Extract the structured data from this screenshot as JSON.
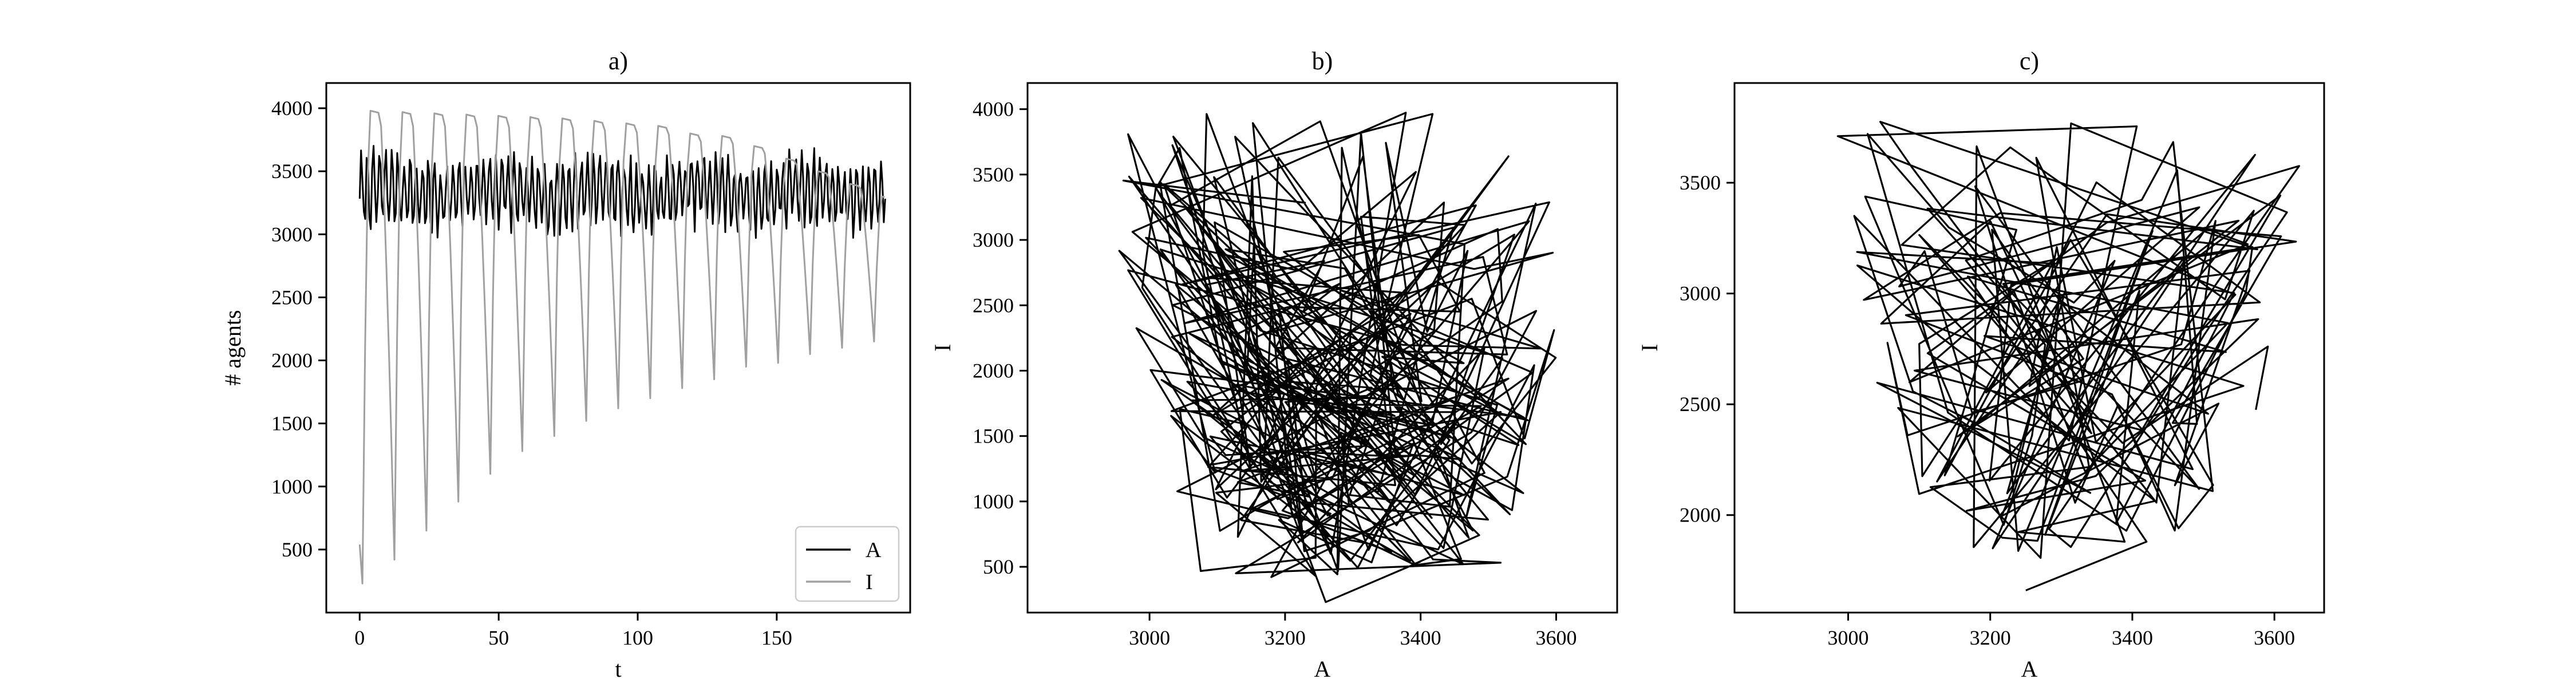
{
  "chart_data": [
    {
      "type": "line",
      "title": "a)",
      "xlabel": "t",
      "ylabel": "# agents",
      "xlim": [
        -12,
        198
      ],
      "ylim": [
        0,
        4200
      ],
      "xticks": [
        0,
        50,
        100,
        150
      ],
      "yticks": [
        500,
        1000,
        1500,
        2000,
        2500,
        3000,
        3500,
        4000
      ],
      "legend": {
        "position": "lower-right",
        "entries": [
          "A",
          "I"
        ]
      },
      "series": [
        {
          "name": "A",
          "color": "#000000",
          "kind": "oscillation",
          "t_range": [
            0,
            189
          ],
          "mean": 3330,
          "amplitude": 260,
          "period": 2.2,
          "seed": 7
        },
        {
          "name": "I",
          "color": "#a0a0a0",
          "kind": "spiking-cycle",
          "t_range": [
            0,
            189
          ],
          "period": 11.5,
          "start": 230,
          "peaks": [
            3980,
            3970,
            3960,
            3950,
            3940,
            3930,
            3920,
            3900,
            3880,
            3860,
            3800,
            3780,
            3700,
            3600,
            3500,
            3400,
            3300
          ],
          "troughs": [
            230,
            420,
            650,
            880,
            1100,
            1280,
            1400,
            1520,
            1620,
            1700,
            1780,
            1850,
            1950,
            1980,
            2050,
            2100,
            2150
          ]
        }
      ]
    },
    {
      "type": "line",
      "title": "b)",
      "xlabel": "A",
      "ylabel": "I",
      "xlim": [
        2820,
        3690
      ],
      "ylim": [
        150,
        4200
      ],
      "xticks": [
        3000,
        3200,
        3400,
        3600
      ],
      "yticks": [
        500,
        1000,
        1500,
        2000,
        2500,
        3000,
        3500,
        4000
      ],
      "series": [
        {
          "name": "",
          "color": "#000000",
          "kind": "phase-trajectory",
          "x_range": [
            2860,
            3650
          ],
          "y_range": [
            230,
            3990
          ],
          "segments": 260,
          "seed": 21,
          "start": [
            3400,
            540
          ],
          "second": [
            3260,
            230
          ]
        }
      ]
    },
    {
      "type": "line",
      "title": "c)",
      "xlabel": "A",
      "ylabel": "I",
      "xlim": [
        2840,
        3670
      ],
      "ylim": [
        1560,
        3950
      ],
      "xticks": [
        3000,
        3200,
        3400,
        3600
      ],
      "yticks": [
        2000,
        2500,
        3000,
        3500
      ],
      "series": [
        {
          "name": "",
          "color": "#000000",
          "kind": "phase-trajectory",
          "x_range": [
            2900,
            3640
          ],
          "y_range": [
            1660,
            3870
          ],
          "segments": 150,
          "seed": 33,
          "start": [
            3250,
            1660
          ],
          "second": [
            3420,
            1880
          ]
        }
      ]
    }
  ]
}
